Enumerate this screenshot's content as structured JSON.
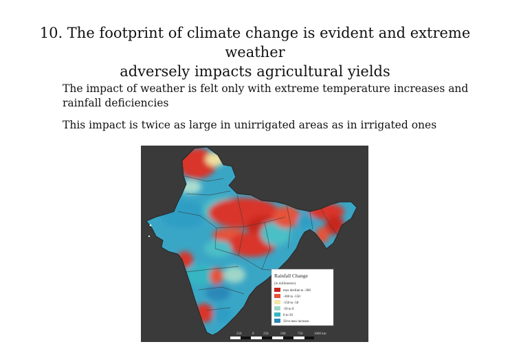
{
  "slide": {
    "title_line1": "10. The footprint of climate change is evident and extreme weather",
    "title_line2": "adversely impacts agricultural yields",
    "bullets": [
      "The impact of weather is felt only with extreme temperature increases and rainfall deficiencies",
      "This impact is twice as large in unirrigated areas as in irrigated ones"
    ]
  },
  "map": {
    "legend": {
      "title": "Rainfall Change",
      "subtitle": "(in millimeters)",
      "items": [
        {
          "label": "max decline to -300",
          "color": "#c8261e"
        },
        {
          "label": "-300 to -150",
          "color": "#e5533a"
        },
        {
          "label": "-150 to -50",
          "color": "#f4e8a6"
        },
        {
          "label": "-50 to 0",
          "color": "#9fd6c7"
        },
        {
          "label": "0 to 50",
          "color": "#35b6c2"
        },
        {
          "label": "50 to max increase",
          "color": "#2a88b8"
        }
      ]
    },
    "scale": {
      "ticks": [
        "250",
        "0",
        "250",
        "500",
        "750",
        "1000 km"
      ]
    }
  }
}
